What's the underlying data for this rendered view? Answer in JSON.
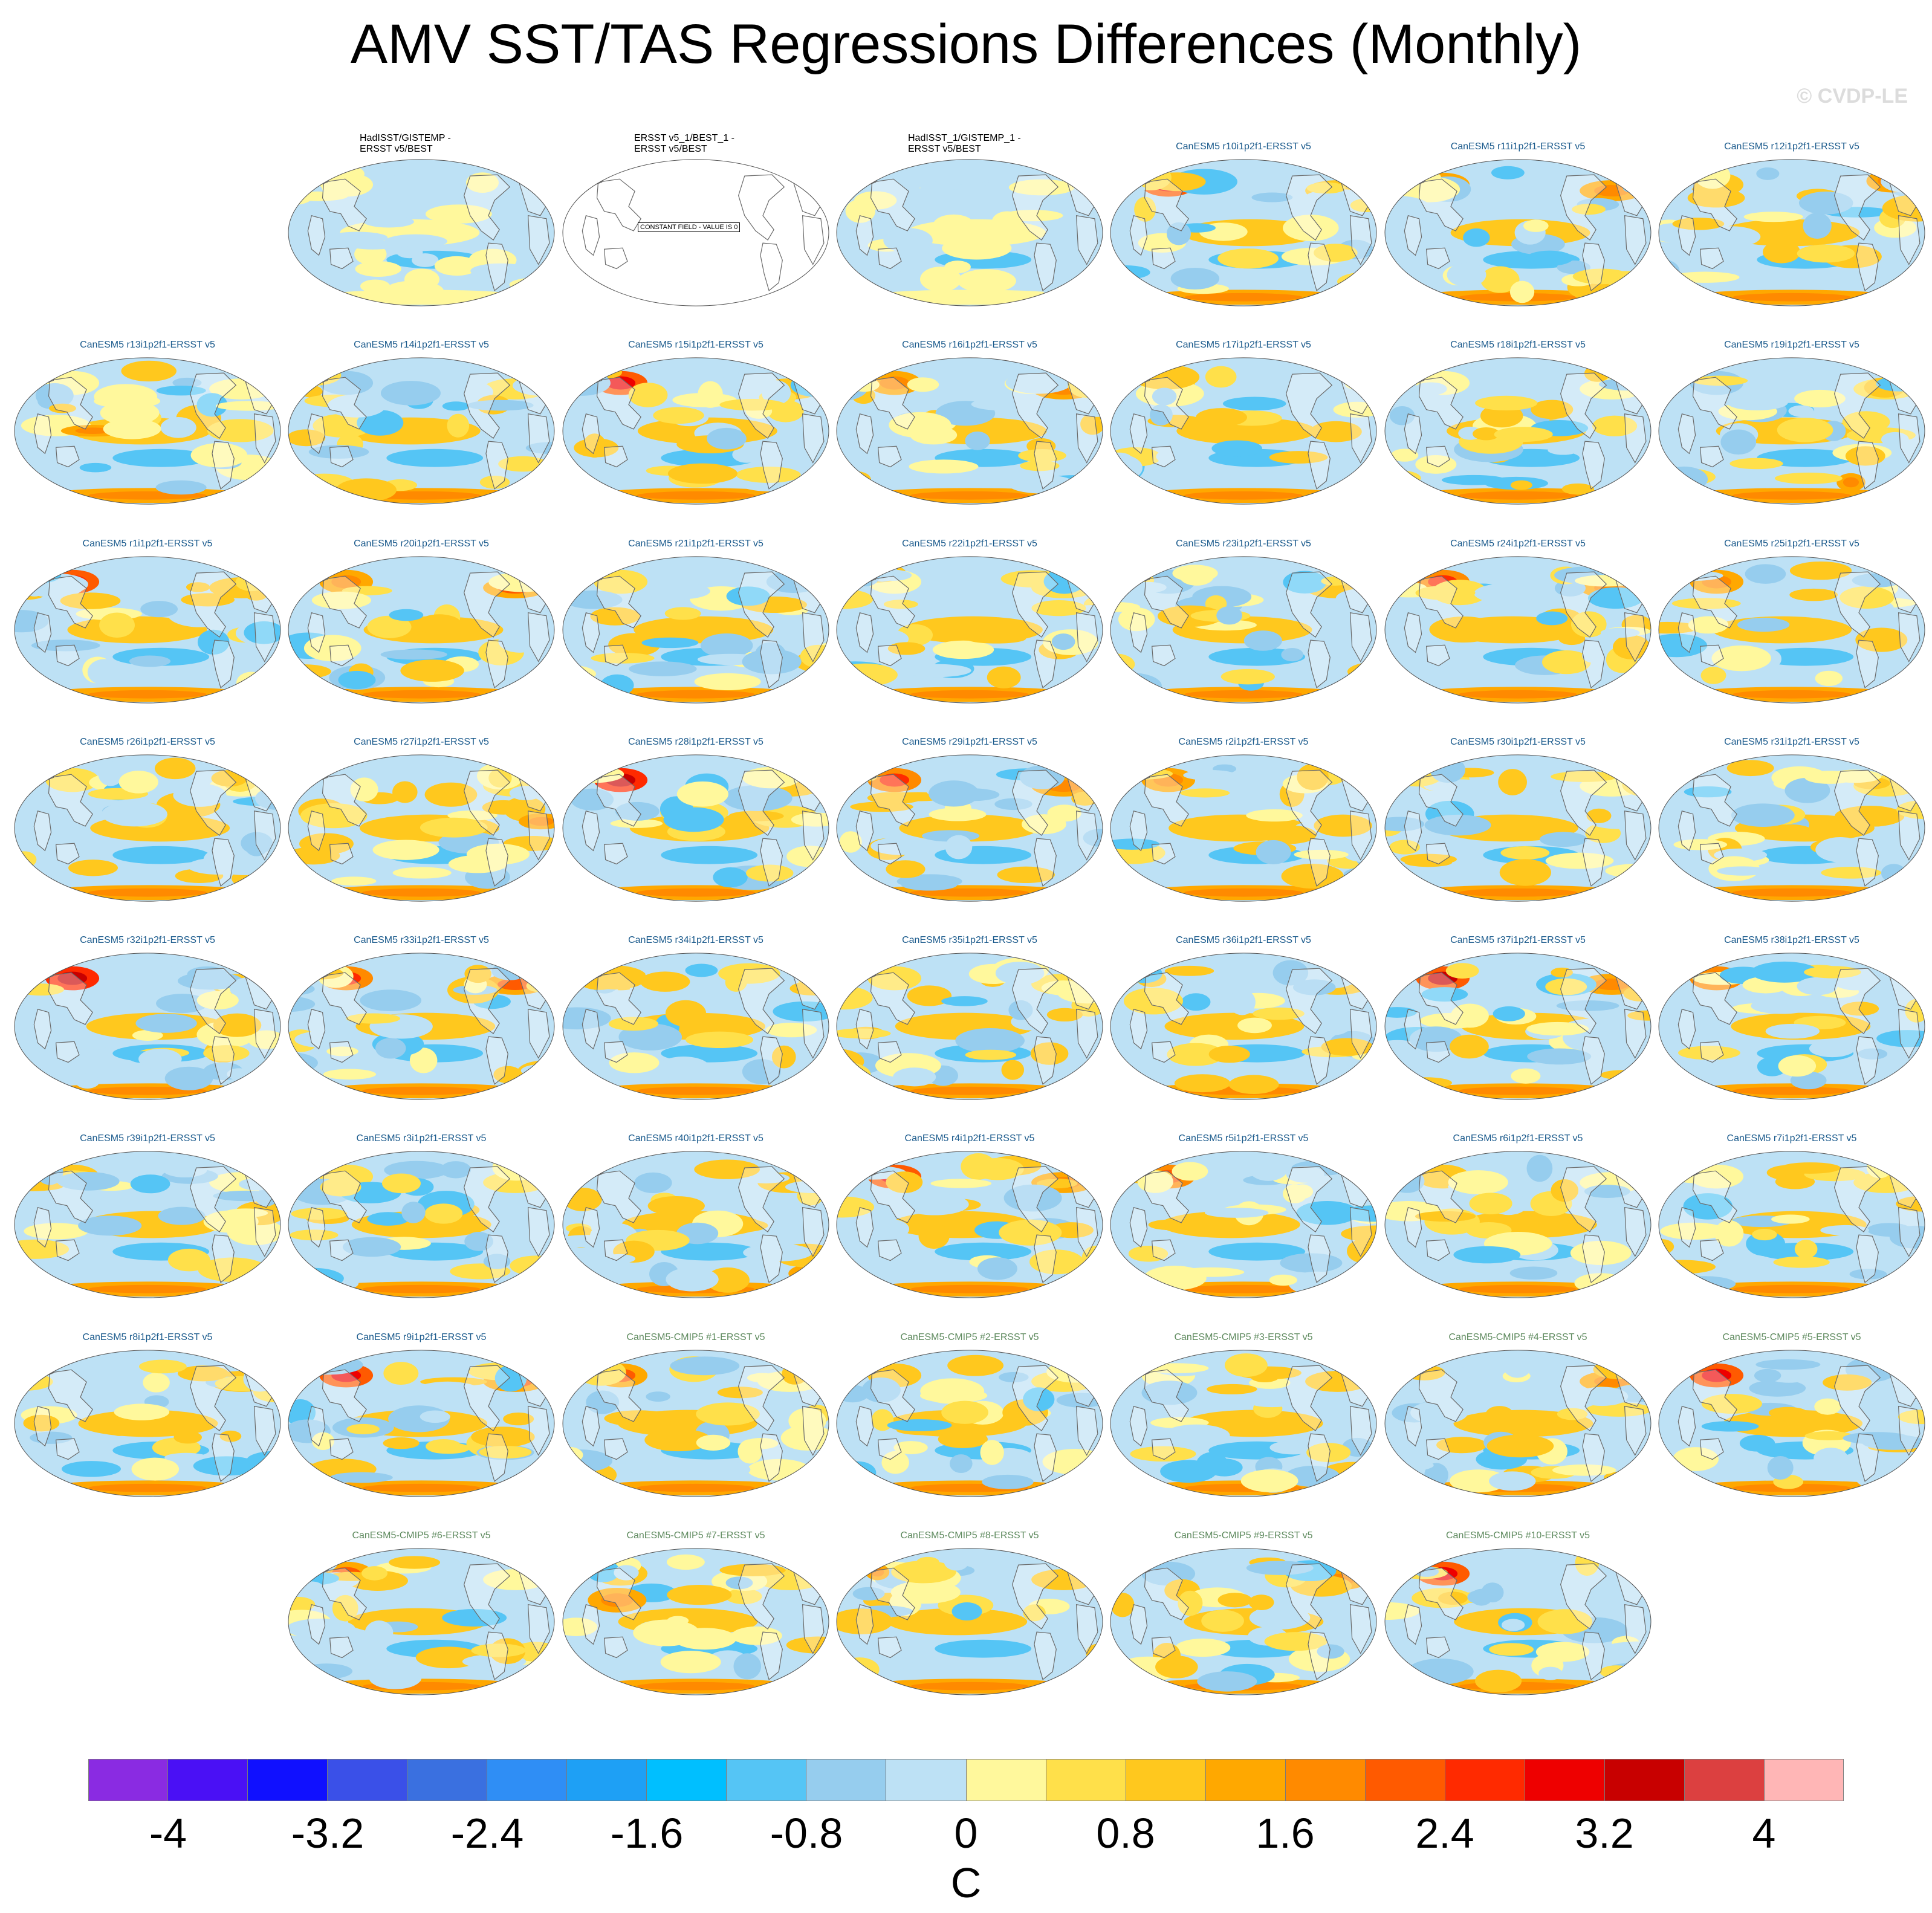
{
  "figure": {
    "title": "AMV SST/TAS Regressions Differences (Monthly)",
    "watermark": "© CVDP-LE"
  },
  "chart_data": {
    "type": "heatmap",
    "projection": "Robinson global map panels, Pacific-centered",
    "title": "AMV SST/TAS Regressions Differences (Monthly)",
    "panels": [
      {
        "title": "HadISST/GISTEMP -\nERSST v5/BEST",
        "kind": "obs",
        "seed": 3
      },
      {
        "title": "ERSST v5_1/BEST_1 -\nERSST v5/BEST",
        "kind": "obs",
        "constant": true,
        "note": "CONSTANT FIELD - VALUE IS 0",
        "seed": 0
      },
      {
        "title": "HadISST_1/GISTEMP_1 -\nERSST v5/BEST",
        "kind": "obs",
        "seed": 5
      },
      {
        "title": "CanESM5 r10i1p2f1-ERSST v5",
        "kind": "le",
        "seed": 11
      },
      {
        "title": "CanESM5 r11i1p2f1-ERSST v5",
        "kind": "le",
        "seed": 12
      },
      {
        "title": "CanESM5 r12i1p2f1-ERSST v5",
        "kind": "le",
        "seed": 13
      },
      {
        "title": "CanESM5 r13i1p2f1-ERSST v5",
        "kind": "le",
        "seed": 14
      },
      {
        "title": "CanESM5 r14i1p2f1-ERSST v5",
        "kind": "le",
        "seed": 15
      },
      {
        "title": "CanESM5 r15i1p2f1-ERSST v5",
        "kind": "le",
        "seed": 16
      },
      {
        "title": "CanESM5 r16i1p2f1-ERSST v5",
        "kind": "le",
        "seed": 17
      },
      {
        "title": "CanESM5 r17i1p2f1-ERSST v5",
        "kind": "le",
        "seed": 18
      },
      {
        "title": "CanESM5 r18i1p2f1-ERSST v5",
        "kind": "le",
        "seed": 19
      },
      {
        "title": "CanESM5 r19i1p2f1-ERSST v5",
        "kind": "le",
        "seed": 20
      },
      {
        "title": "CanESM5 r1i1p2f1-ERSST v5",
        "kind": "le",
        "seed": 21
      },
      {
        "title": "CanESM5 r20i1p2f1-ERSST v5",
        "kind": "le",
        "seed": 22
      },
      {
        "title": "CanESM5 r21i1p2f1-ERSST v5",
        "kind": "le",
        "seed": 23
      },
      {
        "title": "CanESM5 r22i1p2f1-ERSST v5",
        "kind": "le",
        "seed": 24
      },
      {
        "title": "CanESM5 r23i1p2f1-ERSST v5",
        "kind": "le",
        "seed": 25
      },
      {
        "title": "CanESM5 r24i1p2f1-ERSST v5",
        "kind": "le",
        "seed": 26
      },
      {
        "title": "CanESM5 r25i1p2f1-ERSST v5",
        "kind": "le",
        "seed": 27
      },
      {
        "title": "CanESM5 r26i1p2f1-ERSST v5",
        "kind": "le",
        "seed": 28
      },
      {
        "title": "CanESM5 r27i1p2f1-ERSST v5",
        "kind": "le",
        "seed": 29
      },
      {
        "title": "CanESM5 r28i1p2f1-ERSST v5",
        "kind": "le",
        "seed": 30
      },
      {
        "title": "CanESM5 r29i1p2f1-ERSST v5",
        "kind": "le",
        "seed": 31
      },
      {
        "title": "CanESM5 r2i1p2f1-ERSST v5",
        "kind": "le",
        "seed": 32
      },
      {
        "title": "CanESM5 r30i1p2f1-ERSST v5",
        "kind": "le",
        "seed": 33
      },
      {
        "title": "CanESM5 r31i1p2f1-ERSST v5",
        "kind": "le",
        "seed": 34
      },
      {
        "title": "CanESM5 r32i1p2f1-ERSST v5",
        "kind": "le",
        "seed": 35
      },
      {
        "title": "CanESM5 r33i1p2f1-ERSST v5",
        "kind": "le",
        "seed": 36
      },
      {
        "title": "CanESM5 r34i1p2f1-ERSST v5",
        "kind": "le",
        "seed": 37
      },
      {
        "title": "CanESM5 r35i1p2f1-ERSST v5",
        "kind": "le",
        "seed": 38
      },
      {
        "title": "CanESM5 r36i1p2f1-ERSST v5",
        "kind": "le",
        "seed": 39
      },
      {
        "title": "CanESM5 r37i1p2f1-ERSST v5",
        "kind": "le",
        "seed": 40
      },
      {
        "title": "CanESM5 r38i1p2f1-ERSST v5",
        "kind": "le",
        "seed": 41
      },
      {
        "title": "CanESM5 r39i1p2f1-ERSST v5",
        "kind": "le",
        "seed": 42
      },
      {
        "title": "CanESM5 r3i1p2f1-ERSST v5",
        "kind": "le",
        "seed": 43
      },
      {
        "title": "CanESM5 r40i1p2f1-ERSST v5",
        "kind": "le",
        "seed": 44
      },
      {
        "title": "CanESM5 r4i1p2f1-ERSST v5",
        "kind": "le",
        "seed": 45
      },
      {
        "title": "CanESM5 r5i1p2f1-ERSST v5",
        "kind": "le",
        "seed": 46
      },
      {
        "title": "CanESM5 r6i1p2f1-ERSST v5",
        "kind": "le",
        "seed": 47
      },
      {
        "title": "CanESM5 r7i1p2f1-ERSST v5",
        "kind": "le",
        "seed": 48
      },
      {
        "title": "CanESM5 r8i1p2f1-ERSST v5",
        "kind": "le",
        "seed": 49
      },
      {
        "title": "CanESM5 r9i1p2f1-ERSST v5",
        "kind": "le",
        "seed": 50
      },
      {
        "title": "CanESM5-CMIP5 #1-ERSST v5",
        "kind": "cmip",
        "seed": 51
      },
      {
        "title": "CanESM5-CMIP5 #2-ERSST v5",
        "kind": "cmip",
        "seed": 52
      },
      {
        "title": "CanESM5-CMIP5 #3-ERSST v5",
        "kind": "cmip",
        "seed": 53
      },
      {
        "title": "CanESM5-CMIP5 #4-ERSST v5",
        "kind": "cmip",
        "seed": 54
      },
      {
        "title": "CanESM5-CMIP5 #5-ERSST v5",
        "kind": "cmip",
        "seed": 55
      },
      {
        "title": "CanESM5-CMIP5 #6-ERSST v5",
        "kind": "cmip",
        "seed": 56
      },
      {
        "title": "CanESM5-CMIP5 #7-ERSST v5",
        "kind": "cmip",
        "seed": 57
      },
      {
        "title": "CanESM5-CMIP5 #8-ERSST v5",
        "kind": "cmip",
        "seed": 58
      },
      {
        "title": "CanESM5-CMIP5 #9-ERSST v5",
        "kind": "cmip",
        "seed": 59
      },
      {
        "title": "CanESM5-CMIP5 #10-ERSST v5",
        "kind": "cmip",
        "seed": 60
      }
    ],
    "colorbar": {
      "units": "C",
      "levels": [
        -4.4,
        -4.0,
        -3.6,
        -3.2,
        -2.8,
        -2.4,
        -2.0,
        -1.6,
        -1.2,
        -0.8,
        -0.4,
        0,
        0.4,
        0.8,
        1.2,
        1.6,
        2.0,
        2.4,
        2.8,
        3.2,
        3.6,
        4.0,
        4.4
      ],
      "colors": [
        "#8a2be2",
        "#4a10f5",
        "#1010ff",
        "#3a50e8",
        "#3a70e0",
        "#2f8ef5",
        "#1ea0f5",
        "#00bfff",
        "#55c5f5",
        "#96cdee",
        "#bde1f5",
        "#fff89c",
        "#ffe04a",
        "#ffc81e",
        "#ffa800",
        "#ff8a00",
        "#ff5a00",
        "#ff2a00",
        "#ee0000",
        "#c80000",
        "#dc4040",
        "#ffb6b6"
      ],
      "tick_labels": [
        "-4",
        "-3.2",
        "-2.4",
        "-1.6",
        "-0.8",
        "0",
        "0.8",
        "1.6",
        "2.4",
        "3.2",
        "4"
      ],
      "tick_values": [
        -4,
        -3.2,
        -2.4,
        -1.6,
        -0.8,
        0,
        0.8,
        1.6,
        2.4,
        3.2,
        4.0
      ],
      "range": [
        -4.4,
        4.4
      ]
    }
  }
}
